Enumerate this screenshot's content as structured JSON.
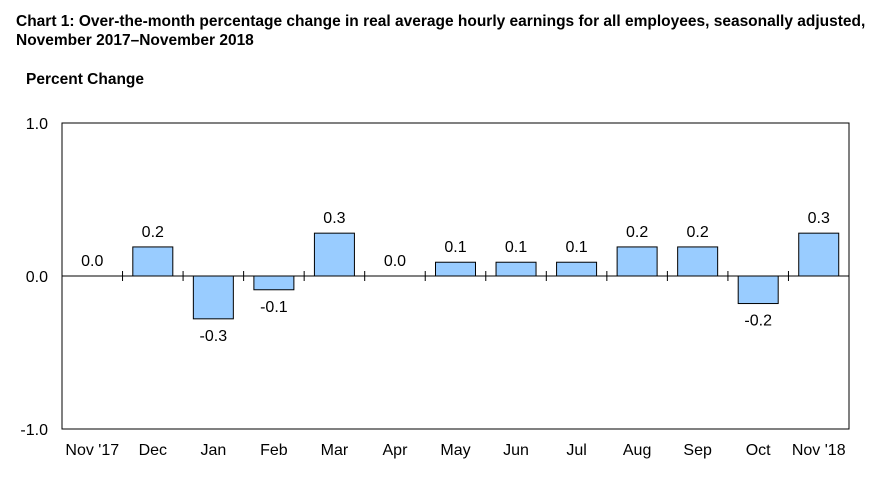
{
  "chart_data": {
    "type": "bar",
    "title": "Chart 1: Over-the-month percentage change in real average hourly earnings for all employees, seasonally adjusted, November 2017–November 2018",
    "ylabel": "Percent Change",
    "xlabel": "",
    "categories": [
      "Nov '17",
      "Dec",
      "Jan",
      "Feb",
      "Mar",
      "Apr",
      "May",
      "Jun",
      "Jul",
      "Aug",
      "Sep",
      "Oct",
      "Nov '18"
    ],
    "values": [
      0.0,
      0.2,
      -0.3,
      -0.1,
      0.3,
      0.0,
      0.1,
      0.1,
      0.1,
      0.2,
      0.2,
      -0.2,
      0.3
    ],
    "data_labels": [
      "0.0",
      "0.2",
      "-0.3",
      "-0.1",
      "0.3",
      "0.0",
      "0.1",
      "0.1",
      "0.1",
      "0.2",
      "0.2",
      "-0.2",
      "0.3"
    ],
    "plotted_values": [
      0.0,
      0.19,
      -0.28,
      -0.09,
      0.28,
      0.0,
      0.09,
      0.09,
      0.09,
      0.19,
      0.19,
      -0.18,
      0.28
    ],
    "ylim": [
      -1.0,
      1.0
    ],
    "yticks": [
      "-1.0",
      "0.0",
      "1.0"
    ],
    "ytick_values": [
      -1.0,
      0.0,
      1.0
    ],
    "grid": false,
    "legend": "none",
    "colors": {
      "bar_fill": "#99ccff",
      "bar_stroke": "#000000",
      "axis": "#000000"
    }
  }
}
